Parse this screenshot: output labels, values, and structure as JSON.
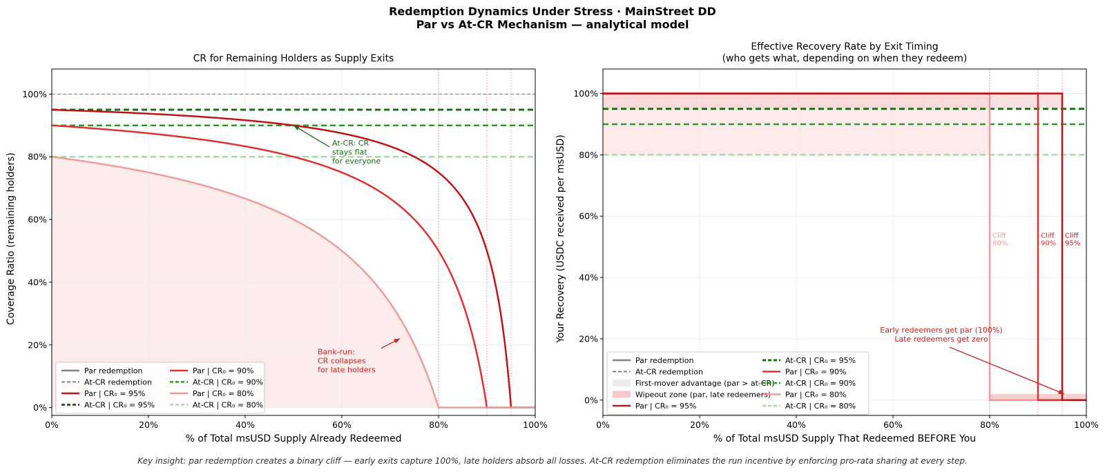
{
  "figure": {
    "title_line1": "Redemption Dynamics Under Stress  ·  MainStreet DD",
    "title_line2": "Par vs At-CR Mechanism  —  analytical model",
    "footer": "Key insight: par redemption creates a binary cliff — early exits capture 100%, late holders absorb all losses. At-CR redemption eliminates the run incentive by enforcing pro-rata sharing at every step."
  },
  "colors": {
    "par95": "#bf1414",
    "par90": "#e03030",
    "par80": "#f09a9a",
    "at95": "#1a6e1a",
    "at90": "#2e9a2e",
    "at80": "#a6d8a6",
    "grey_line": "#909090",
    "shade": "#fde9e9",
    "shade_strong": "#f7caca",
    "ann_red": "#cc1f1f",
    "ann_green": "#1a6e1a"
  },
  "chart_data": [
    {
      "type": "line",
      "title": "CR for Remaining Holders as Supply Exits",
      "xlabel": "% of Total msUSD Supply Already Redeemed",
      "ylabel": "Coverage Ratio (remaining holders)",
      "xlim": [
        0,
        100
      ],
      "ylim": [
        -2.5,
        108
      ],
      "xticks": [
        "0%",
        "20%",
        "40%",
        "60%",
        "80%",
        "100%"
      ],
      "yticks": [
        "0%",
        "20%",
        "40%",
        "60%",
        "80%",
        "100%"
      ],
      "reference_line": 100,
      "model": "par CR(x) = (CR0 - x) / (1 - x), clipped at 0; at-CR constant = CR0",
      "series": [
        {
          "name": "Par   | CR₀ = 95%",
          "mechanism": "par",
          "cr0": 95,
          "cliff_x": 95
        },
        {
          "name": "Par   | CR₀ = 90%",
          "mechanism": "par",
          "cr0": 90,
          "cliff_x": 90
        },
        {
          "name": "Par   | CR₀ = 80%",
          "mechanism": "par",
          "cr0": 80,
          "cliff_x": 80
        },
        {
          "name": "At-CR | CR₀ = 95%",
          "mechanism": "at-cr",
          "cr0": 95
        },
        {
          "name": "At-CR | CR₀ = 90%",
          "mechanism": "at-cr",
          "cr0": 90
        },
        {
          "name": "At-CR | CR₀ = 80%",
          "mechanism": "at-cr",
          "cr0": 80
        }
      ],
      "annotations": [
        {
          "text": [
            "At-CR: CR",
            "stays flat",
            "for everyone"
          ],
          "point": [
            50,
            90
          ],
          "text_at": [
            58,
            84.5
          ]
        },
        {
          "text": [
            "Bank-run:",
            "CR collapses",
            "for late holders"
          ],
          "point": [
            72,
            22
          ],
          "text_at": [
            55,
            17
          ]
        }
      ],
      "legend": {
        "placement": "lower-left",
        "entries": [
          {
            "label": "Par redemption",
            "style": "grey-solid"
          },
          {
            "label": "Par   | CR₀ = 90%",
            "style": "par90"
          },
          {
            "label": "At-CR redemption",
            "style": "grey-dash"
          },
          {
            "label": "At-CR | CR₀ = 90%",
            "style": "at90"
          },
          {
            "label": "Par   | CR₀ = 95%",
            "style": "par95"
          },
          {
            "label": "Par   | CR₀ = 80%",
            "style": "par80"
          },
          {
            "label": "At-CR | CR₀ = 95%",
            "style": "at95"
          },
          {
            "label": "At-CR | CR₀ = 80%",
            "style": "at80"
          }
        ]
      }
    },
    {
      "type": "line",
      "title_line1": "Effective Recovery Rate by Exit Timing",
      "title_line2": "(who gets what, depending on when they redeem)",
      "xlabel": "% of Total msUSD Supply That Redeemed BEFORE You",
      "ylabel": "Your Recovery  (USDC received per msUSD)",
      "xlim": [
        0,
        100
      ],
      "ylim": [
        -5,
        108
      ],
      "xticks": [
        "0%",
        "20%",
        "40%",
        "60%",
        "80%",
        "100%"
      ],
      "yticks": [
        "0%",
        "20%",
        "40%",
        "60%",
        "80%",
        "100%"
      ],
      "series": [
        {
          "name": "Par   | CR₀ = 95%",
          "mechanism": "par",
          "value_before_cliff": 100,
          "cliff_x": 95,
          "value_after_cliff": 0
        },
        {
          "name": "Par   | CR₀ = 90%",
          "mechanism": "par",
          "value_before_cliff": 100,
          "cliff_x": 90,
          "value_after_cliff": 0
        },
        {
          "name": "Par   | CR₀ = 80%",
          "mechanism": "par",
          "value_before_cliff": 100,
          "cliff_x": 80,
          "value_after_cliff": 0
        },
        {
          "name": "At-CR | CR₀ = 95%",
          "mechanism": "at-cr",
          "value": 95
        },
        {
          "name": "At-CR | CR₀ = 90%",
          "mechanism": "at-cr",
          "value": 90
        },
        {
          "name": "At-CR | CR₀ = 80%",
          "mechanism": "at-cr",
          "value": 80
        }
      ],
      "cliff_labels": [
        {
          "x": 80,
          "lines": [
            "Cliff",
            "80%"
          ],
          "style": "par80"
        },
        {
          "x": 90,
          "lines": [
            "Cliff",
            "90%"
          ],
          "style": "par90"
        },
        {
          "x": 95,
          "lines": [
            "Cliff",
            "95%"
          ],
          "style": "par95"
        }
      ],
      "annotation": {
        "text": [
          "Early redeemers get par (100%)",
          "Late redeemers get zero"
        ],
        "point": [
          95,
          2
        ],
        "text_at": [
          70,
          22
        ]
      },
      "legend": {
        "placement": "lower-left",
        "entries": [
          {
            "label": "Par redemption",
            "style": "grey-solid"
          },
          {
            "label": "At-CR | CR₀ = 95%",
            "style": "at95"
          },
          {
            "label": "At-CR redemption",
            "style": "grey-dash"
          },
          {
            "label": "Par   | CR₀ = 90%",
            "style": "par90"
          },
          {
            "label": "First-mover advantage  (par > at-CR)",
            "style": "patch-light"
          },
          {
            "label": "At-CR | CR₀ = 90%",
            "style": "at90"
          },
          {
            "label": "Wipeout zone  (par, late redeemers)",
            "style": "patch-red"
          },
          {
            "label": "Par   | CR₀ = 80%",
            "style": "par80"
          },
          {
            "label": "Par   | CR₀ = 95%",
            "style": "par95"
          },
          {
            "label": "At-CR | CR₀ = 80%",
            "style": "at80"
          }
        ]
      }
    }
  ]
}
